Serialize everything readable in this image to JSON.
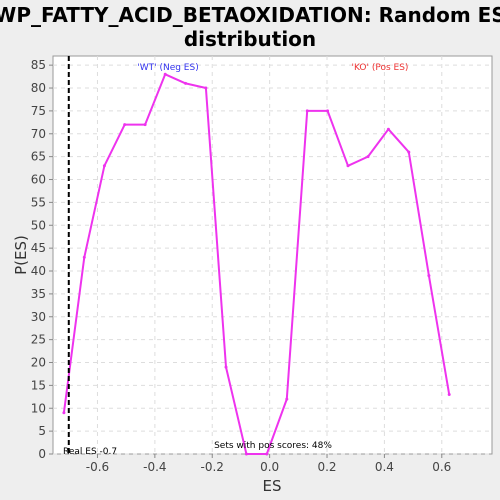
{
  "chart_data": {
    "type": "line",
    "title_line1": "WP_FATTY_ACID_BETAOXIDATION: Random ES",
    "title_line2": "distribution",
    "xlabel": "ES",
    "ylabel": "P(ES)",
    "xlim": [
      -0.755,
      0.775
    ],
    "ylim": [
      0,
      87
    ],
    "x_ticks": [
      -0.6,
      -0.4,
      -0.2,
      0.0,
      0.2,
      0.4,
      0.6
    ],
    "x_tick_labels": [
      "-0.6",
      "-0.4",
      "-0.2",
      "0.0",
      "0.2",
      "0.4",
      "0.6"
    ],
    "y_ticks": [
      0,
      5,
      10,
      15,
      20,
      25,
      30,
      35,
      40,
      45,
      50,
      55,
      60,
      65,
      70,
      75,
      80,
      85
    ],
    "y_tick_labels": [
      "0",
      "5",
      "10",
      "15",
      "20",
      "25",
      "30",
      "35",
      "40",
      "45",
      "50",
      "55",
      "60",
      "65",
      "70",
      "75",
      "80",
      "85"
    ],
    "grid": true,
    "series": [
      {
        "color": "#ee33ee",
        "x": [
          -0.717,
          -0.646,
          -0.576,
          -0.505,
          -0.434,
          -0.364,
          -0.293,
          -0.222,
          -0.152,
          -0.081,
          -0.01,
          0.06,
          0.131,
          0.202,
          0.273,
          0.343,
          0.414,
          0.485,
          0.555,
          0.626,
          0.697
        ],
        "y": [
          9,
          43,
          63,
          72,
          72,
          83,
          81,
          80,
          19,
          0,
          0,
          12,
          75,
          75,
          63,
          65,
          71,
          66,
          39,
          13,
          null
        ]
      }
    ],
    "real_es": -0.7,
    "real_es_label": "Real ES -0.7",
    "neg_label": "'WT' (Neg ES)",
    "neg_color": "#3333ee",
    "pos_label": "'KO' (Pos ES)",
    "pos_color": "#ee3333",
    "footer_label": "Sets with pos scores: 48%"
  }
}
